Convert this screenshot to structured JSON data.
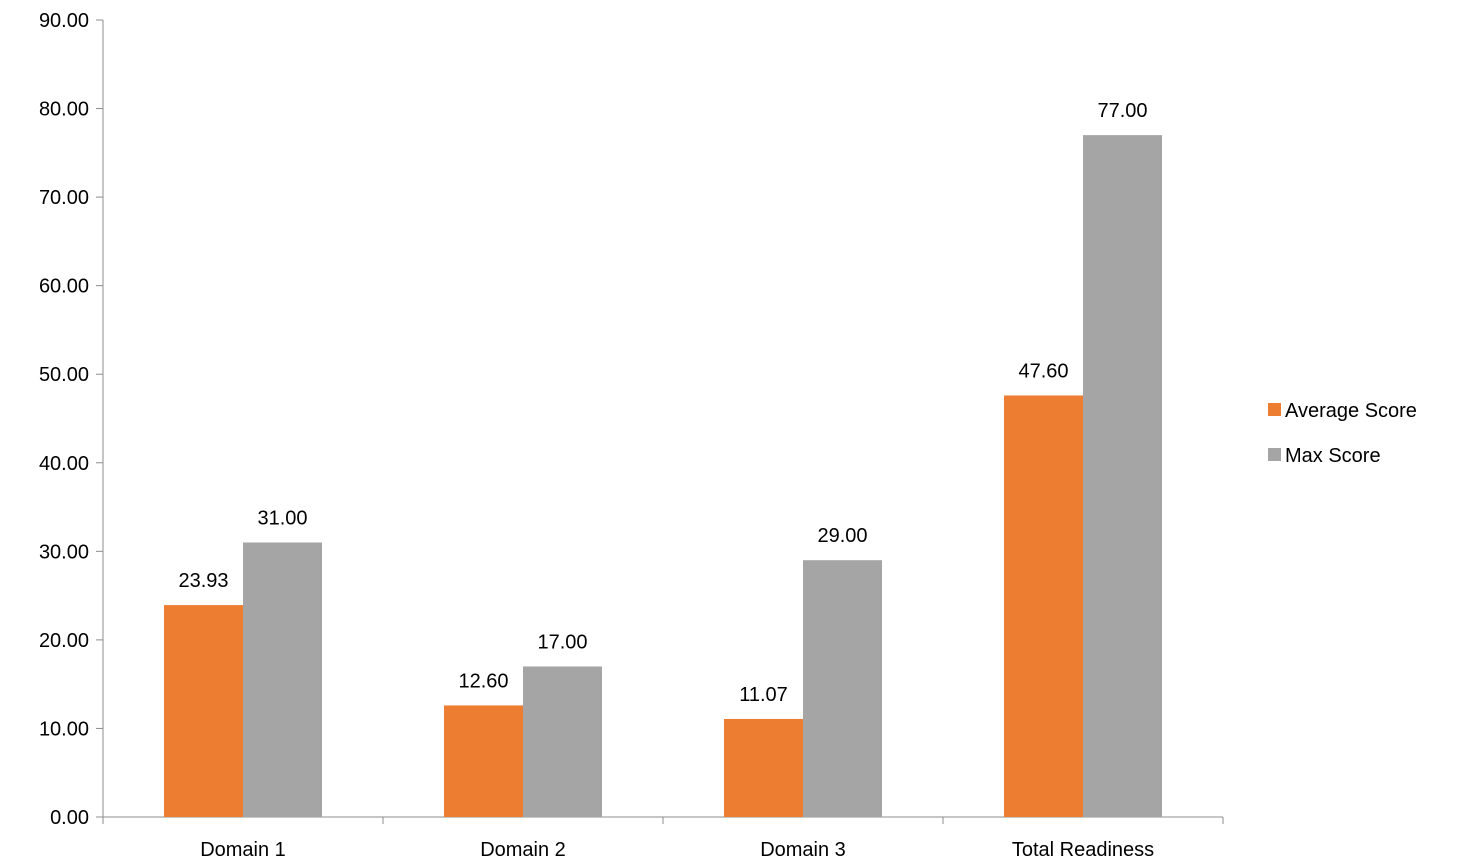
{
  "chart_data": {
    "type": "bar",
    "categories": [
      "Domain 1",
      "Domain 2",
      "Domain 3",
      "Total Readiness"
    ],
    "series": [
      {
        "name": "Average Score",
        "color": "#ed7d31",
        "values": [
          23.93,
          12.6,
          11.07,
          47.6
        ]
      },
      {
        "name": "Max Score",
        "color": "#a5a5a5",
        "values": [
          31.0,
          17.0,
          29.0,
          77.0
        ]
      }
    ],
    "ylim": [
      0,
      90
    ],
    "yticks": [
      0,
      10,
      20,
      30,
      40,
      50,
      60,
      70,
      80,
      90
    ],
    "tick_decimals": 2,
    "grid": false,
    "legend": "right",
    "data_labels": true
  }
}
